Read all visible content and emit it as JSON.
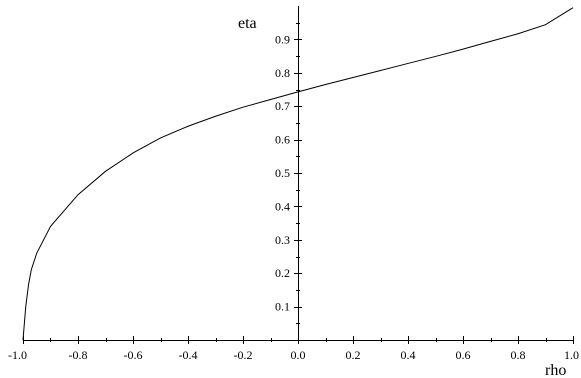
{
  "chart_data": {
    "type": "line",
    "title": "",
    "xlabel": "rho",
    "ylabel": "eta",
    "xlim": [
      -1.0,
      1.0
    ],
    "ylim": [
      0,
      1.0
    ],
    "x_ticks": [
      -1.0,
      -0.8,
      -0.6,
      -0.4,
      -0.2,
      0.0,
      0.2,
      0.4,
      0.6,
      0.8,
      1.0
    ],
    "x_tick_labels": [
      "-1.0",
      "-0.8",
      "-0.6",
      "-0.4",
      "-0.2",
      "0.0",
      "0.2",
      "0.4",
      "0.6",
      "0.8",
      "1.0"
    ],
    "y_ticks": [
      0.1,
      0.2,
      0.3,
      0.4,
      0.5,
      0.6,
      0.7,
      0.8,
      0.9
    ],
    "y_tick_labels": [
      "0.1",
      "0.2",
      "0.3",
      "0.4",
      "0.5",
      "0.6",
      "0.7",
      "0.8",
      "0.9"
    ],
    "grid": false,
    "series": [
      {
        "x": [
          -1.0,
          -0.99,
          -0.98,
          -0.97,
          -0.95,
          -0.9,
          -0.8,
          -0.7,
          -0.6,
          -0.5,
          -0.4,
          -0.3,
          -0.2,
          -0.1,
          0.0,
          0.1,
          0.2,
          0.3,
          0.4,
          0.5,
          0.6,
          0.7,
          0.8,
          0.9,
          1.0
        ],
        "y": [
          0.0,
          0.1,
          0.165,
          0.21,
          0.26,
          0.34,
          0.435,
          0.505,
          0.56,
          0.605,
          0.64,
          0.67,
          0.697,
          0.72,
          0.743,
          0.765,
          0.786,
          0.807,
          0.828,
          0.849,
          0.871,
          0.894,
          0.917,
          0.944,
          0.995
        ]
      }
    ]
  }
}
